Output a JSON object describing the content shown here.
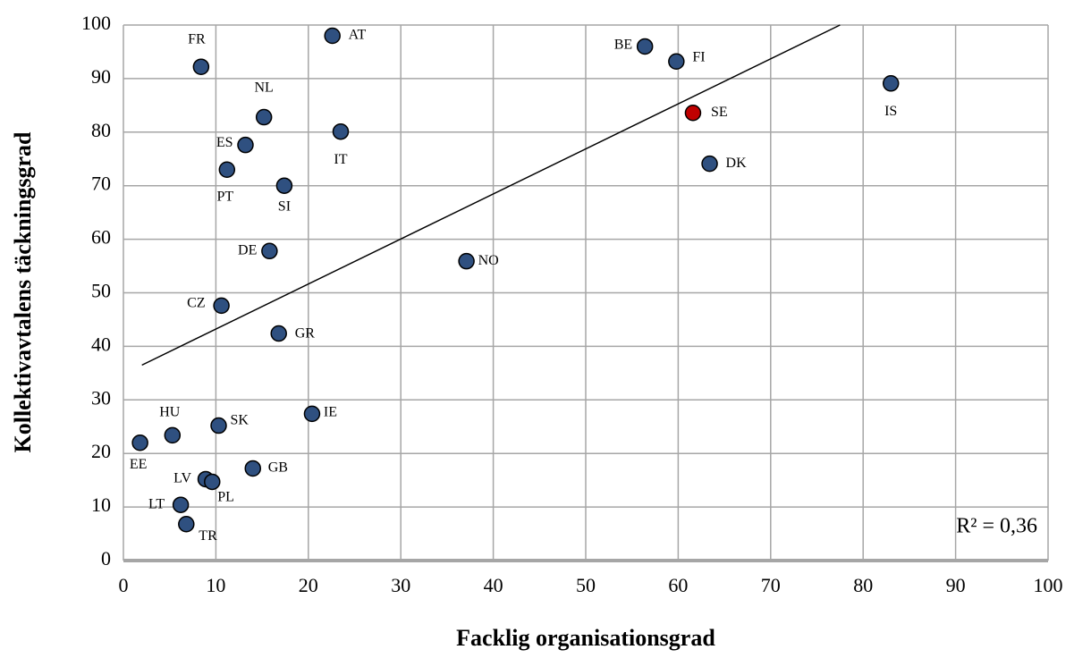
{
  "chart_data": {
    "type": "scatter",
    "x_label": "Facklig organisationsgrad",
    "y_label": "Kollektivavtalens täckningsgrad",
    "annotation": "R² = 0,36",
    "labels": [
      "FR",
      "AT",
      "BE",
      "FI",
      "IS",
      "NL",
      "ES",
      "IT",
      "SE",
      "DK",
      "PT",
      "SI",
      "DE",
      "NO",
      "CZ",
      "GR",
      "HU",
      "SK",
      "IE",
      "EE",
      "GB",
      "LV",
      "PL",
      "LT",
      "TR"
    ],
    "x": [
      8.4,
      22.6,
      56.4,
      59.8,
      83,
      15.2,
      13.2,
      23.5,
      61.6,
      63.4,
      11.2,
      17.4,
      15.8,
      37.1,
      10.6,
      16.8,
      5.3,
      10.3,
      20.4,
      1.8,
      14,
      8.9,
      9.6,
      6.2,
      6.8
    ],
    "y": [
      92.2,
      98,
      96,
      93.2,
      89.1,
      82.8,
      77.6,
      80.1,
      83.6,
      74.1,
      73,
      70,
      57.8,
      55.9,
      47.6,
      42.4,
      23.4,
      25.2,
      27.4,
      22,
      17.2,
      15.2,
      14.7,
      10.4,
      6.8
    ],
    "colors": [
      "#2f5080",
      "#2f5080",
      "#2f5080",
      "#2f5080",
      "#2f5080",
      "#2f5080",
      "#2f5080",
      "#2f5080",
      "#c00000",
      "#2f5080",
      "#2f5080",
      "#2f5080",
      "#2f5080",
      "#2f5080",
      "#2f5080",
      "#2f5080",
      "#2f5080",
      "#2f5080",
      "#2f5080",
      "#2f5080",
      "#2f5080",
      "#2f5080",
      "#2f5080",
      "#2f5080",
      "#2f5080"
    ],
    "trendline": {
      "x": [
        2,
        77.5
      ],
      "y": [
        36.5,
        100
      ]
    },
    "xlim": [
      0,
      100
    ],
    "ylim": [
      0,
      100
    ],
    "xticks": [
      0,
      10,
      20,
      30,
      40,
      50,
      60,
      70,
      80,
      90,
      100
    ],
    "yticks": [
      0,
      10,
      20,
      30,
      40,
      50,
      60,
      70,
      80,
      90,
      100
    ],
    "grid": true
  }
}
